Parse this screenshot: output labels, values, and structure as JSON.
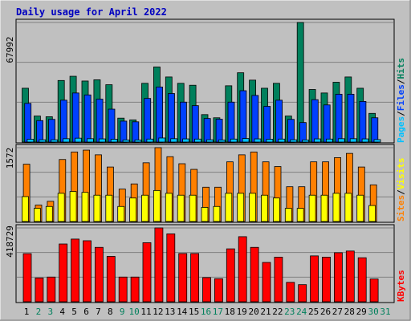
{
  "chart_data": {
    "type": "bar",
    "title": "Daily usage for April 2022",
    "days": [
      "1",
      "2",
      "3",
      "4",
      "5",
      "6",
      "7",
      "8",
      "9",
      "10",
      "11",
      "12",
      "13",
      "14",
      "15",
      "16",
      "17",
      "18",
      "19",
      "20",
      "21",
      "22",
      "23",
      "24",
      "25",
      "26",
      "27",
      "28",
      "29",
      "30",
      "31"
    ],
    "weekend_days": [
      "2",
      "3",
      "9",
      "10",
      "16",
      "17",
      "23",
      "24",
      "30",
      "31"
    ],
    "colors": {
      "hits": "#00805c",
      "files": "#0040ff",
      "pages": "#00c0ff",
      "visits": "#ff8000",
      "sites": "#ffff00",
      "kbytes": "#ff0000",
      "title": "#0000c0",
      "weekday": "#000000",
      "weekend": "#00805c"
    },
    "panels": [
      {
        "name": "hits-files-pages",
        "ymax_label": "67992",
        "ymax": 67992,
        "series": [
          {
            "name": "Hits",
            "values": [
              30600,
              14800,
              14400,
              35000,
              37400,
              34700,
              35400,
              32600,
              13600,
              12600,
              33400,
              42700,
              37000,
              33400,
              32300,
              15600,
              13800,
              32000,
              39400,
              35200,
              30600,
              33400,
              14800,
              67992,
              29900,
              27900,
              34000,
              37000,
              30600,
              16300
            ]
          },
          {
            "name": "Files",
            "values": [
              22000,
              12200,
              12900,
              23800,
              27900,
              26800,
              24400,
              18700,
              11900,
              11500,
              24800,
              31300,
              27600,
              22700,
              20700,
              13400,
              13000,
              22700,
              29200,
              26500,
              20300,
              23800,
              12900,
              11100,
              24100,
              21100,
              27200,
              27200,
              23100,
              13800
            ]
          },
          {
            "name": "Pages",
            "values": [
              1600,
              1300,
              1300,
              1900,
              2200,
              1900,
              1800,
              1600,
              1200,
              1200,
              1700,
              2300,
              1900,
              1800,
              1700,
              1300,
              1200,
              1700,
              2000,
              1800,
              1600,
              1700,
              1300,
              1200,
              1800,
              1700,
              1900,
              1900,
              1800,
              1400
            ]
          }
        ]
      },
      {
        "name": "visits-sites",
        "ymax_label": "1572",
        "ymax": 1572,
        "series": [
          {
            "name": "Visits",
            "values": [
              1220,
              350,
              430,
              1320,
              1480,
              1520,
              1420,
              1160,
              690,
              800,
              1250,
              1572,
              1380,
              1230,
              1110,
              730,
              730,
              1270,
              1420,
              1480,
              1270,
              1170,
              740,
              740,
              1270,
              1270,
              1360,
              1450,
              1160,
              780
            ]
          },
          {
            "name": "Sites",
            "values": [
              530,
              280,
              320,
              600,
              640,
              620,
              560,
              560,
              320,
              500,
              560,
              660,
              600,
              560,
              560,
              300,
              320,
              600,
              600,
              600,
              560,
              500,
              280,
              280,
              560,
              560,
              600,
              600,
              560,
              340
            ]
          }
        ]
      },
      {
        "name": "kbytes",
        "ymax_label": "418729",
        "ymax": 418729,
        "series": [
          {
            "name": "KBytes",
            "values": [
              272800,
              135000,
              140000,
              327600,
              355400,
              346000,
              308400,
              257200,
              140000,
              140000,
              334800,
              418729,
              385000,
              273400,
              273400,
              137000,
              130700,
              300000,
              369000,
              308400,
              223000,
              253000,
              110000,
              97000,
              260000,
              253000,
              278000,
              287600,
              249600,
              129000
            ]
          }
        ]
      }
    ],
    "legend_top": [
      "Pages",
      "Files",
      "Hits"
    ],
    "legend_mid": [
      "Sites",
      "Visits"
    ],
    "legend_bottom": [
      "KBytes"
    ]
  }
}
